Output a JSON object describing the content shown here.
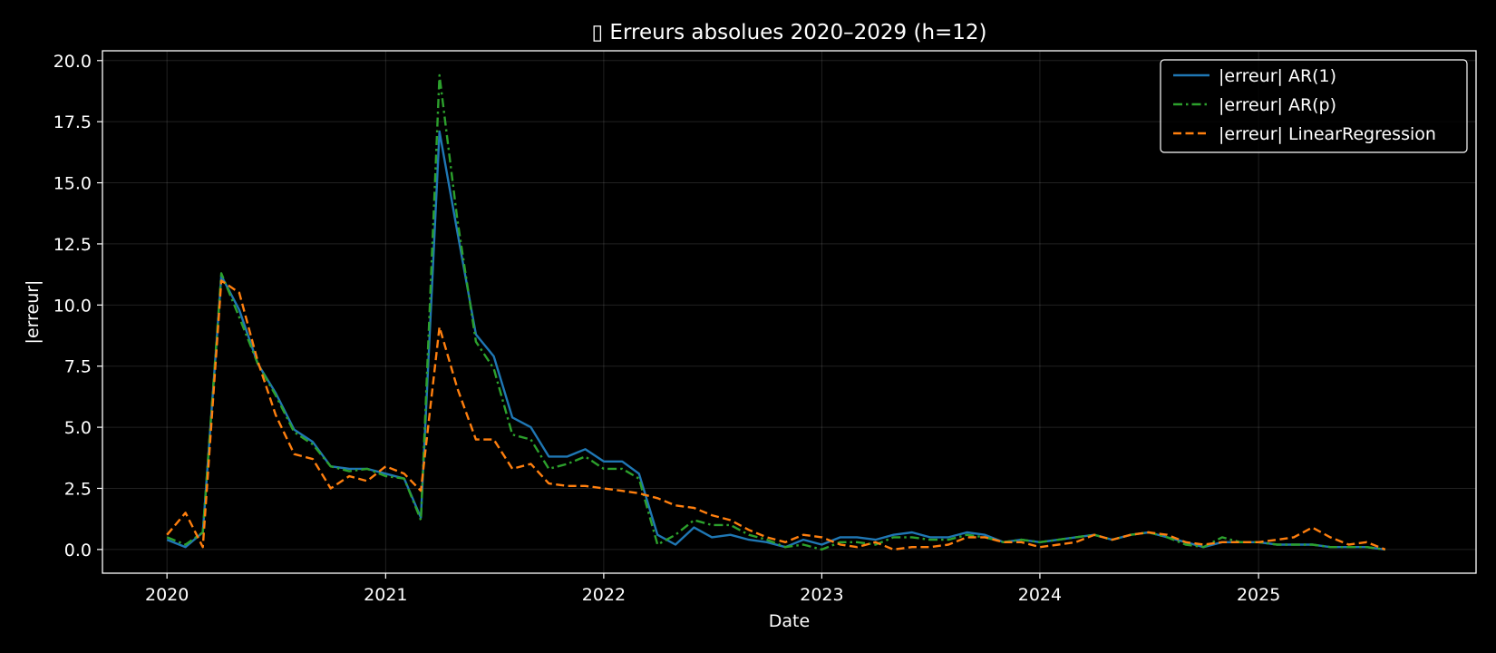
{
  "chart_data": {
    "type": "line",
    "title": "▯ Erreurs absolues 2020–2029 (h=12)",
    "xlabel": "Date",
    "ylabel": "|erreur|",
    "xlim": [
      "2019-09-15",
      "2025-12-31"
    ],
    "ylim": [
      -0.97,
      20.4
    ],
    "x_ticks": [
      "2020-01-01",
      "2021-01-01",
      "2022-01-01",
      "2023-01-01",
      "2024-01-01",
      "2025-01-01"
    ],
    "x_tick_labels": [
      "2020",
      "2021",
      "2022",
      "2023",
      "2024",
      "2025"
    ],
    "y_ticks": [
      0.0,
      2.5,
      5.0,
      7.5,
      10.0,
      12.5,
      15.0,
      17.5,
      20.0
    ],
    "y_tick_labels": [
      "0.0",
      "2.5",
      "5.0",
      "7.5",
      "10.0",
      "12.5",
      "15.0",
      "17.5",
      "20.0"
    ],
    "grid": true,
    "legend_position": "top-right",
    "background": "#000000",
    "x": [
      "2020-01",
      "2020-02",
      "2020-03",
      "2020-04",
      "2020-05",
      "2020-06",
      "2020-07",
      "2020-08",
      "2020-09",
      "2020-10",
      "2020-11",
      "2020-12",
      "2021-01",
      "2021-02",
      "2021-03",
      "2021-04",
      "2021-05",
      "2021-06",
      "2021-07",
      "2021-08",
      "2021-09",
      "2021-10",
      "2021-11",
      "2021-12",
      "2022-01",
      "2022-02",
      "2022-03",
      "2022-04",
      "2022-05",
      "2022-06",
      "2022-07",
      "2022-08",
      "2022-09",
      "2022-10",
      "2022-11",
      "2022-12",
      "2023-01",
      "2023-02",
      "2023-03",
      "2023-04",
      "2023-05",
      "2023-06",
      "2023-07",
      "2023-08",
      "2023-09",
      "2023-10",
      "2023-11",
      "2023-12",
      "2024-01",
      "2024-02",
      "2024-03",
      "2024-04",
      "2024-05",
      "2024-06",
      "2024-07",
      "2024-08",
      "2024-09",
      "2024-10",
      "2024-11",
      "2024-12",
      "2025-01",
      "2025-02",
      "2025-03",
      "2025-04",
      "2025-05",
      "2025-06",
      "2025-07",
      "2025-08"
    ],
    "series": [
      {
        "name": "|erreur| AR(1)",
        "color": "#1f77b4",
        "dash": "solid",
        "values": [
          0.4,
          0.1,
          0.7,
          11.2,
          9.8,
          7.6,
          6.4,
          4.9,
          4.4,
          3.4,
          3.3,
          3.3,
          3.1,
          2.9,
          1.3,
          17.1,
          13.0,
          8.8,
          7.9,
          5.4,
          5.0,
          3.8,
          3.8,
          4.1,
          3.6,
          3.6,
          3.1,
          0.6,
          0.2,
          0.9,
          0.5,
          0.6,
          0.4,
          0.3,
          0.1,
          0.4,
          0.2,
          0.5,
          0.5,
          0.4,
          0.6,
          0.7,
          0.5,
          0.5,
          0.7,
          0.6,
          0.3,
          0.4,
          0.3,
          0.4,
          0.5,
          0.6,
          0.4,
          0.6,
          0.7,
          0.5,
          0.3,
          0.1,
          0.3,
          0.3,
          0.3,
          0.2,
          0.2,
          0.2,
          0.1,
          0.1,
          0.1,
          0.0
        ]
      },
      {
        "name": "|erreur| AR(p)",
        "color": "#2ca02c",
        "dash": "dashdot",
        "values": [
          0.5,
          0.2,
          0.7,
          11.3,
          9.5,
          7.6,
          6.3,
          4.8,
          4.3,
          3.4,
          3.2,
          3.3,
          3.0,
          2.9,
          1.2,
          19.4,
          13.5,
          8.5,
          7.4,
          4.7,
          4.5,
          3.3,
          3.5,
          3.8,
          3.3,
          3.3,
          2.9,
          0.2,
          0.6,
          1.2,
          1.0,
          1.0,
          0.6,
          0.4,
          0.1,
          0.2,
          0.0,
          0.3,
          0.3,
          0.2,
          0.5,
          0.5,
          0.4,
          0.4,
          0.6,
          0.5,
          0.3,
          0.4,
          0.3,
          0.4,
          0.5,
          0.6,
          0.4,
          0.6,
          0.7,
          0.5,
          0.2,
          0.1,
          0.5,
          0.3,
          0.3,
          0.2,
          0.2,
          0.2,
          0.1,
          0.1,
          0.1,
          0.0
        ]
      },
      {
        "name": "|erreur| LinearRegression",
        "color": "#ff7f0e",
        "dash": "dashed",
        "values": [
          0.6,
          1.5,
          0.1,
          11.0,
          10.5,
          7.7,
          5.5,
          3.9,
          3.7,
          2.5,
          3.0,
          2.8,
          3.4,
          3.1,
          2.4,
          9.1,
          6.6,
          4.5,
          4.5,
          3.3,
          3.5,
          2.7,
          2.6,
          2.6,
          2.5,
          2.4,
          2.3,
          2.1,
          1.8,
          1.7,
          1.4,
          1.2,
          0.8,
          0.5,
          0.3,
          0.6,
          0.5,
          0.2,
          0.1,
          0.3,
          0.0,
          0.1,
          0.1,
          0.2,
          0.5,
          0.5,
          0.3,
          0.3,
          0.1,
          0.2,
          0.3,
          0.6,
          0.4,
          0.6,
          0.7,
          0.6,
          0.3,
          0.2,
          0.3,
          0.3,
          0.3,
          0.4,
          0.5,
          0.9,
          0.5,
          0.2,
          0.3,
          0.0
        ]
      }
    ]
  }
}
